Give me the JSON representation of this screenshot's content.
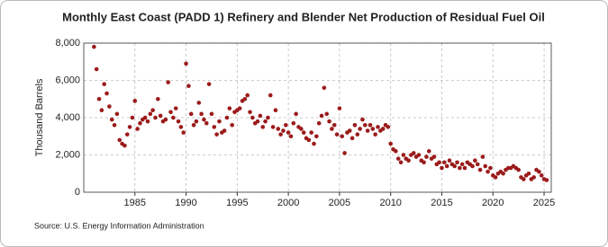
{
  "chart_data": {
    "type": "scatter",
    "title": "Monthly East Coast (PADD 1) Refinery and Blender Net Production of Residual Fuel Oil",
    "y_label": "Thousand Barrels",
    "source": "Source: U.S. Energy Information Administration",
    "color": "#9b1b1b",
    "grid": true,
    "xlim": [
      1980,
      2025.7
    ],
    "ylim": [
      0,
      8000
    ],
    "xticks": [
      1985,
      1990,
      1995,
      2000,
      2005,
      2010,
      2015,
      2020,
      2025
    ],
    "yticks": [
      0,
      {
        "value": 2000,
        "label": "2,000"
      },
      {
        "value": 4000,
        "label": "4,000"
      },
      {
        "value": 6000,
        "label": "6,000"
      },
      {
        "value": 8000,
        "label": "8,000"
      }
    ],
    "x": [
      1981,
      1981.25,
      1981.5,
      1981.75,
      1982,
      1982.25,
      1982.5,
      1982.75,
      1983,
      1983.25,
      1983.5,
      1983.75,
      1984,
      1984.25,
      1984.5,
      1984.75,
      1985,
      1985.25,
      1985.5,
      1985.75,
      1986,
      1986.25,
      1986.5,
      1986.75,
      1987,
      1987.25,
      1987.5,
      1987.75,
      1988,
      1988.25,
      1988.5,
      1988.75,
      1989,
      1989.25,
      1989.5,
      1989.75,
      1990,
      1990.25,
      1990.5,
      1990.75,
      1991,
      1991.25,
      1991.5,
      1991.75,
      1992,
      1992.25,
      1992.5,
      1992.75,
      1993,
      1993.25,
      1993.5,
      1993.75,
      1994,
      1994.25,
      1994.5,
      1994.75,
      1995,
      1995.25,
      1995.5,
      1995.75,
      1996,
      1996.25,
      1996.5,
      1996.75,
      1997,
      1997.25,
      1997.5,
      1997.75,
      1998,
      1998.25,
      1998.5,
      1998.75,
      1999,
      1999.25,
      1999.5,
      1999.75,
      2000,
      2000.25,
      2000.5,
      2000.75,
      2001,
      2001.25,
      2001.5,
      2001.75,
      2002,
      2002.25,
      2002.5,
      2002.75,
      2003,
      2003.25,
      2003.5,
      2003.75,
      2004,
      2004.25,
      2004.5,
      2004.75,
      2005,
      2005.25,
      2005.5,
      2005.75,
      2006,
      2006.25,
      2006.5,
      2006.75,
      2007,
      2007.25,
      2007.5,
      2007.75,
      2008,
      2008.25,
      2008.5,
      2008.75,
      2009,
      2009.25,
      2009.5,
      2009.75,
      2010,
      2010.25,
      2010.5,
      2010.75,
      2011,
      2011.25,
      2011.5,
      2011.75,
      2012,
      2012.25,
      2012.5,
      2012.75,
      2013,
      2013.25,
      2013.5,
      2013.75,
      2014,
      2014.25,
      2014.5,
      2014.75,
      2015,
      2015.25,
      2015.5,
      2015.75,
      2016,
      2016.25,
      2016.5,
      2016.75,
      2017,
      2017.25,
      2017.5,
      2017.75,
      2018,
      2018.25,
      2018.5,
      2018.75,
      2019,
      2019.25,
      2019.5,
      2019.75,
      2020,
      2020.25,
      2020.5,
      2020.75,
      2021,
      2021.25,
      2021.5,
      2021.75,
      2022,
      2022.25,
      2022.5,
      2022.75,
      2023,
      2023.25,
      2023.5,
      2023.75,
      2024,
      2024.25,
      2024.5,
      2024.75,
      2025,
      2025.25
    ],
    "values": [
      7800,
      6600,
      5000,
      4400,
      5800,
      5300,
      4600,
      3900,
      3600,
      4200,
      2800,
      2600,
      2500,
      3100,
      3500,
      4000,
      4900,
      3400,
      3700,
      3900,
      4000,
      3800,
      4200,
      4400,
      4000,
      5000,
      4100,
      3800,
      3900,
      5900,
      4300,
      4000,
      4500,
      3800,
      3500,
      3200,
      6900,
      5700,
      4200,
      3600,
      3800,
      4800,
      4200,
      3900,
      3700,
      5800,
      4200,
      3500,
      3100,
      3800,
      3200,
      3300,
      4000,
      4500,
      3600,
      4300,
      4400,
      4500,
      4900,
      5000,
      5200,
      4300,
      4000,
      3700,
      3800,
      4100,
      3500,
      3800,
      4000,
      5200,
      3500,
      4400,
      3400,
      3100,
      3300,
      3600,
      3200,
      3000,
      3700,
      4200,
      3500,
      3400,
      3200,
      2900,
      2800,
      3200,
      2600,
      3000,
      3700,
      4100,
      5600,
      4200,
      3800,
      3400,
      3600,
      3100,
      4500,
      3000,
      2100,
      3200,
      3300,
      2900,
      3600,
      3100,
      3400,
      3900,
      3600,
      3300,
      3600,
      3400,
      3100,
      3500,
      3300,
      3400,
      3600,
      3500,
      2600,
      2300,
      2200,
      1800,
      1600,
      2000,
      1800,
      1700,
      2000,
      2100,
      1900,
      2000,
      1700,
      1600,
      1900,
      2200,
      1800,
      1900,
      1500,
      1600,
      1300,
      1600,
      1400,
      1700,
      1500,
      1400,
      1600,
      1300,
      1500,
      1300,
      1600,
      1500,
      1400,
      1700,
      1500,
      1200,
      1900,
      1400,
      1100,
      1300,
      900,
      800,
      1000,
      1100,
      1000,
      1200,
      1300,
      1300,
      1400,
      1300,
      1200,
      800,
      700,
      900,
      1000,
      700,
      800,
      1200,
      1100,
      900,
      700,
      650
    ]
  }
}
